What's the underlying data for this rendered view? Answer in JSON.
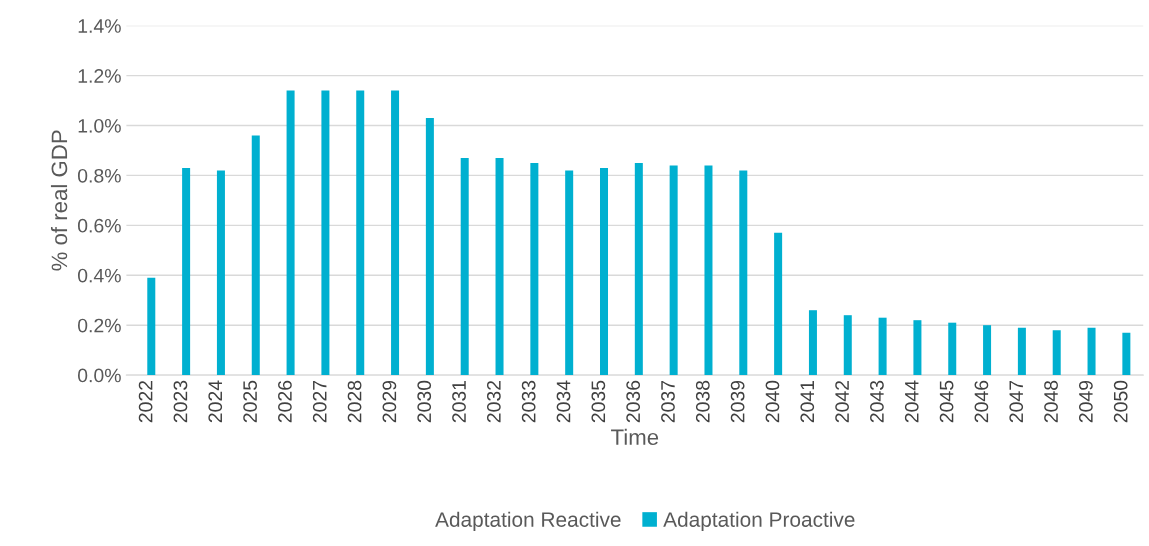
{
  "chart_data": {
    "type": "bar",
    "xlabel": "Time",
    "ylabel": "% of real GDP",
    "categories": [
      "2022",
      "2023",
      "2024",
      "2025",
      "2026",
      "2027",
      "2028",
      "2029",
      "2030",
      "2031",
      "2032",
      "2033",
      "2034",
      "2035",
      "2036",
      "2037",
      "2038",
      "2039",
      "2040",
      "2041",
      "2042",
      "2043",
      "2044",
      "2045",
      "2046",
      "2047",
      "2048",
      "2049",
      "2050"
    ],
    "series": [
      {
        "name": "Adaptation Reactive",
        "values": [
          null,
          null,
          null,
          null,
          null,
          null,
          null,
          null,
          null,
          null,
          null,
          null,
          null,
          null,
          null,
          null,
          null,
          null,
          null,
          null,
          null,
          null,
          null,
          null,
          null,
          null,
          null,
          null,
          null
        ]
      },
      {
        "name": "Adaptation Proactive",
        "color": "#00b0d0",
        "values": [
          0.39,
          0.83,
          0.82,
          0.96,
          1.14,
          1.14,
          1.14,
          1.14,
          1.03,
          0.87,
          0.87,
          0.85,
          0.82,
          0.83,
          0.85,
          0.84,
          0.84,
          0.82,
          0.57,
          0.26,
          0.24,
          0.23,
          0.22,
          0.21,
          0.2,
          0.19,
          0.18,
          0.19,
          0.17
        ]
      }
    ],
    "ylim": [
      0,
      1.4
    ],
    "yticks": [
      {
        "value": 0,
        "label": "0.0%"
      },
      {
        "value": 0.2,
        "label": "0.2%"
      },
      {
        "value": 0.4,
        "label": "0.4%"
      },
      {
        "value": 0.6,
        "label": "0.6%"
      },
      {
        "value": 0.8,
        "label": "0.8%"
      },
      {
        "value": 1.0,
        "label": "1.0%"
      },
      {
        "value": 1.2,
        "label": "1.2%"
      },
      {
        "value": 1.4,
        "label": "1.4%"
      }
    ],
    "grid": "y",
    "legend": "bottom"
  }
}
